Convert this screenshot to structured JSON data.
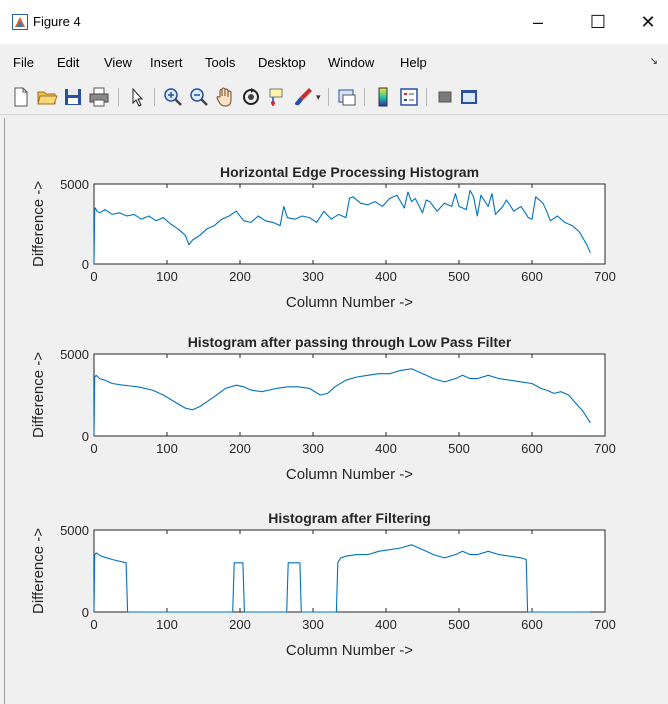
{
  "window": {
    "title": "Figure 4",
    "minimize_label": "–",
    "maximize_label": "☐",
    "close_label": "✕"
  },
  "menu": {
    "items": [
      "File",
      "Edit",
      "View",
      "Insert",
      "Tools",
      "Desktop",
      "Window",
      "Help"
    ],
    "overflow_label": "↘"
  },
  "toolbar": {
    "icons": [
      "new-figure-icon",
      "open-file-icon",
      "save-icon",
      "print-icon",
      "pointer-icon",
      "zoom-in-icon",
      "zoom-out-icon",
      "pan-icon",
      "rotate-3d-icon",
      "data-cursor-icon",
      "brush-icon",
      "link-plot-icon",
      "colorbar-icon",
      "legend-icon",
      "hide-plot-tools-icon",
      "show-plot-tools-icon"
    ]
  },
  "colors": {
    "line": "#0072bd",
    "axes_bg": "#ffffff",
    "figure_bg": "#f0f0f0",
    "text": "#262626"
  },
  "chart_data": [
    {
      "type": "line",
      "title": "Horizontal Edge Processing Histogram",
      "xlabel": "Column Number ->",
      "ylabel": "Difference ->",
      "xlim": [
        0,
        700
      ],
      "ylim": [
        0,
        5000
      ],
      "xticks": [
        0,
        100,
        200,
        300,
        400,
        500,
        600,
        700
      ],
      "yticks": [
        0,
        5000
      ],
      "series": [
        {
          "x": [
            0,
            1,
            2,
            4,
            8,
            15,
            25,
            35,
            45,
            55,
            65,
            75,
            85,
            95,
            105,
            115,
            125,
            130,
            135,
            145,
            155,
            165,
            175,
            185,
            195,
            205,
            215,
            225,
            235,
            245,
            255,
            260,
            265,
            275,
            285,
            295,
            305,
            315,
            325,
            335,
            345,
            350,
            355,
            365,
            375,
            385,
            395,
            405,
            415,
            425,
            430,
            435,
            440,
            450,
            455,
            460,
            470,
            480,
            490,
            495,
            500,
            510,
            515,
            520,
            525,
            530,
            540,
            545,
            550,
            560,
            565,
            575,
            585,
            595,
            600,
            605,
            615,
            620,
            625,
            635,
            645,
            655,
            665,
            675,
            680
          ],
          "y": [
            0,
            3400,
            3500,
            3300,
            3200,
            3400,
            3100,
            3200,
            3000,
            3100,
            2800,
            3000,
            2700,
            2900,
            2500,
            2200,
            1800,
            1200,
            1500,
            1800,
            2200,
            2400,
            2800,
            3000,
            3300,
            2700,
            2600,
            3000,
            2700,
            2600,
            2400,
            3600,
            2900,
            2800,
            3000,
            2900,
            2600,
            3300,
            2800,
            3100,
            2900,
            4100,
            4200,
            3800,
            3700,
            3900,
            3600,
            4100,
            4300,
            3500,
            4500,
            3900,
            4100,
            3200,
            4000,
            3900,
            3300,
            3800,
            3600,
            4400,
            3600,
            3400,
            4600,
            4200,
            3000,
            4300,
            3600,
            4400,
            3100,
            3600,
            4000,
            3300,
            3600,
            2900,
            2800,
            4200,
            3800,
            3300,
            2700,
            3000,
            2600,
            2400,
            2000,
            1200,
            700
          ]
        }
      ]
    },
    {
      "type": "line",
      "title": "Histogram after passing through Low Pass Filter",
      "xlabel": "Column Number ->",
      "ylabel": "Difference ->",
      "xlim": [
        0,
        700
      ],
      "ylim": [
        0,
        5000
      ],
      "xticks": [
        0,
        100,
        200,
        300,
        400,
        500,
        600,
        700
      ],
      "yticks": [
        0,
        5000
      ],
      "series": [
        {
          "x": [
            0,
            1,
            3,
            8,
            15,
            25,
            40,
            60,
            80,
            95,
            110,
            125,
            135,
            145,
            155,
            165,
            180,
            195,
            205,
            215,
            230,
            250,
            265,
            280,
            295,
            310,
            320,
            330,
            345,
            360,
            375,
            390,
            405,
            420,
            435,
            445,
            455,
            465,
            480,
            495,
            505,
            515,
            525,
            540,
            555,
            570,
            585,
            600,
            612,
            620,
            630,
            640,
            650,
            660,
            670,
            680
          ],
          "y": [
            0,
            3600,
            3700,
            3500,
            3400,
            3200,
            3100,
            3000,
            2800,
            2500,
            2100,
            1700,
            1600,
            1800,
            2100,
            2400,
            2900,
            3100,
            3000,
            2800,
            2700,
            2900,
            3000,
            3000,
            2900,
            2500,
            2600,
            3000,
            3400,
            3600,
            3700,
            3800,
            3800,
            4000,
            4100,
            3900,
            3700,
            3500,
            3300,
            3500,
            3700,
            3500,
            3500,
            3700,
            3500,
            3400,
            3300,
            3200,
            2900,
            2800,
            2600,
            2700,
            2500,
            2000,
            1500,
            800
          ]
        }
      ]
    },
    {
      "type": "line",
      "title": "Histogram after Filtering",
      "xlabel": "Column Number ->",
      "ylabel": "Difference ->",
      "xlim": [
        0,
        700
      ],
      "ylim": [
        0,
        5000
      ],
      "xticks": [
        0,
        100,
        200,
        300,
        400,
        500,
        600,
        700
      ],
      "yticks": [
        0,
        5000
      ],
      "series": [
        {
          "x": [
            0,
            1,
            3,
            10,
            25,
            44,
            46,
            190,
            192,
            196,
            204,
            206,
            264,
            266,
            282,
            284,
            332,
            334,
            338,
            345,
            360,
            375,
            390,
            405,
            420,
            435,
            445,
            455,
            465,
            480,
            495,
            505,
            515,
            525,
            540,
            555,
            570,
            585,
            592,
            594,
            680
          ],
          "y": [
            0,
            3500,
            3600,
            3400,
            3200,
            3000,
            0,
            0,
            3000,
            3000,
            3000,
            0,
            0,
            3000,
            3000,
            0,
            0,
            3000,
            3300,
            3400,
            3500,
            3500,
            3700,
            3800,
            3900,
            4100,
            3900,
            3700,
            3500,
            3300,
            3500,
            3700,
            3500,
            3500,
            3700,
            3500,
            3400,
            3300,
            3200,
            0,
            0
          ]
        }
      ]
    }
  ]
}
